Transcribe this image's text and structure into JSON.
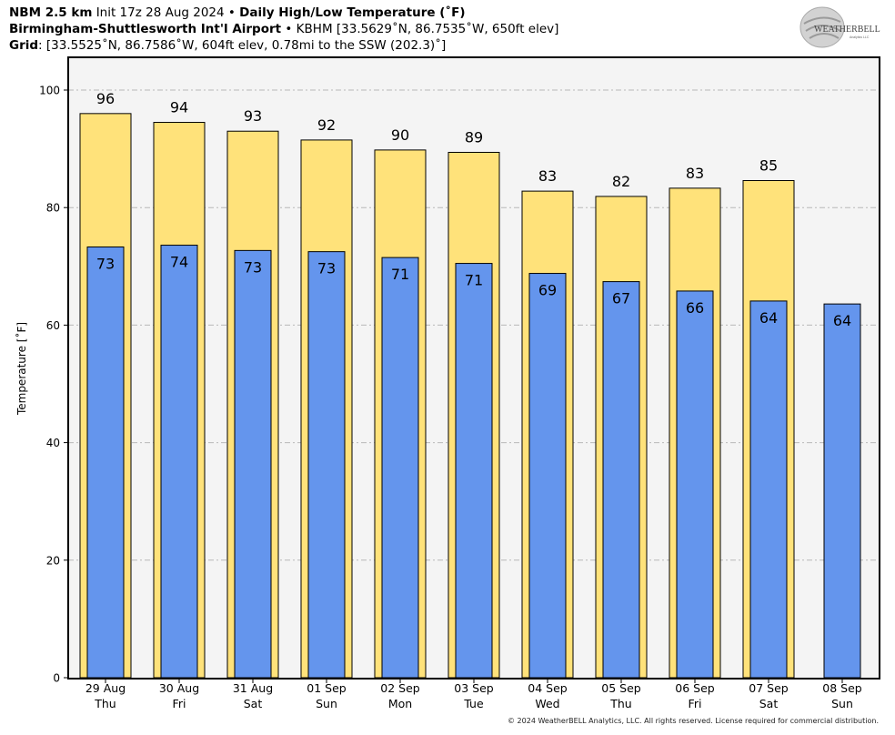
{
  "header": {
    "model": "NBM 2.5 km",
    "init": "Init 17z 28 Aug 2024",
    "sep": "•",
    "product": "Daily High/Low Temperature (˚F)",
    "station": "Birmingham-Shuttlesworth Int'l Airport",
    "station_info": "KBHM [33.5629˚N, 86.7535˚W, 650ft elev]",
    "grid_label": "Grid",
    "grid_info": ": [33.5525˚N, 86.7586˚W, 604ft elev, 0.78mi to the SSW (202.3)˚]"
  },
  "logo": {
    "line1": "WEATHERBELL",
    "line2": "Analytics LLC"
  },
  "copyright": "© 2024 WeatherBELL Analytics, LLC. All rights reserved. License required for commercial distribution.",
  "colors": {
    "high": "#ffe27a",
    "low": "#6495ed",
    "plot_bg": "#f4f4f4",
    "grid": "#b8b8b8"
  },
  "chart_data": {
    "type": "bar",
    "ylabel": "Temperature [˚F]",
    "ylim": [
      0,
      100
    ],
    "yticks": [
      0,
      20,
      40,
      60,
      80,
      100
    ],
    "grid": true,
    "categories": [
      "29 Aug",
      "30 Aug",
      "31 Aug",
      "01 Sep",
      "02 Sep",
      "03 Sep",
      "04 Sep",
      "05 Sep",
      "06 Sep",
      "07 Sep",
      "08 Sep"
    ],
    "weekdays": [
      "Thu",
      "Fri",
      "Sat",
      "Sun",
      "Mon",
      "Tue",
      "Wed",
      "Thu",
      "Fri",
      "Sat",
      "Sun"
    ],
    "series": [
      {
        "values": [
          96,
          94.5,
          93,
          91.5,
          89.8,
          89.4,
          82.8,
          81.9,
          83.3,
          84.6,
          null
        ],
        "labels": [
          "96",
          "94",
          "93",
          "92",
          "90",
          "89",
          "83",
          "82",
          "83",
          "85",
          ""
        ]
      },
      {
        "values": [
          73.3,
          73.6,
          72.7,
          72.5,
          71.5,
          70.5,
          68.8,
          67.4,
          65.8,
          64.1,
          63.6
        ],
        "labels": [
          "73",
          "74",
          "73",
          "73",
          "71",
          "71",
          "69",
          "67",
          "66",
          "64",
          "64"
        ]
      }
    ]
  }
}
